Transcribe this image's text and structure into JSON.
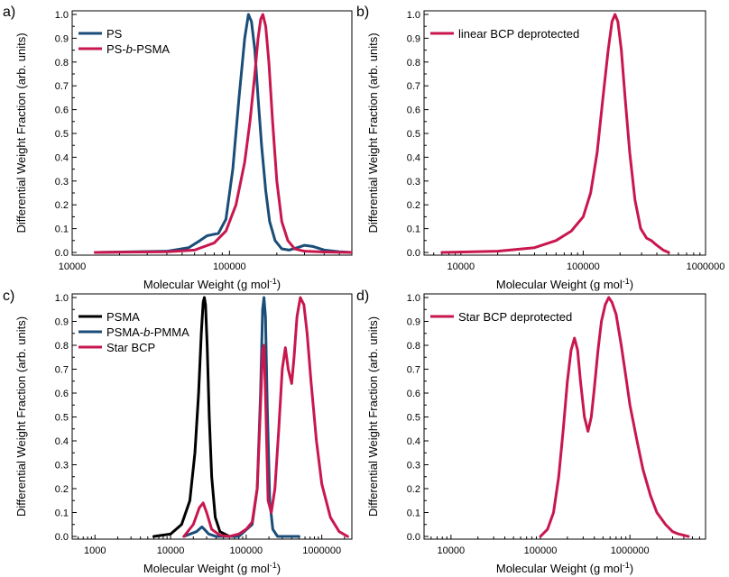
{
  "colors": {
    "navy": "#1a4d78",
    "crimson": "#c8174e",
    "black": "#000000"
  },
  "chart_data": [
    {
      "panel": "a)",
      "type": "line",
      "xscale": "log",
      "xlim": [
        10000,
        600000
      ],
      "ylim": [
        0,
        1.0
      ],
      "xticks": [
        10000,
        100000
      ],
      "xtick_labels": [
        "10000",
        "100000"
      ],
      "yticks": [
        0,
        0.1,
        0.2,
        0.3,
        0.4,
        0.5,
        0.6,
        0.7,
        0.8,
        0.9,
        1.0
      ],
      "ytick_labels": [
        "0.0",
        "0.1",
        "0.2",
        "0.3",
        "0.4",
        "0.5",
        "0.6",
        "0.7",
        "0.8",
        "0.9",
        "1.0"
      ],
      "xlabel": "Molecular Weight (g mol",
      "xlabel_sup": "-1",
      "xlabel_end": ")",
      "ylabel": "Differential Weight Fraction (arb. units)",
      "legend_position": "top-left",
      "series": [
        {
          "name": "PS",
          "name_parts": [
            "PS"
          ],
          "color": "#1a4d78",
          "x": [
            14000,
            40000,
            55000,
            65000,
            72000,
            78000,
            85000,
            95000,
            105000,
            115000,
            125000,
            132000,
            138000,
            145000,
            152000,
            160000,
            170000,
            180000,
            195000,
            215000,
            240000,
            270000,
            300000,
            340000,
            400000,
            500000,
            600000
          ],
          "y": [
            0.0,
            0.005,
            0.02,
            0.05,
            0.07,
            0.075,
            0.08,
            0.14,
            0.35,
            0.65,
            0.9,
            1.0,
            0.97,
            0.85,
            0.65,
            0.45,
            0.26,
            0.13,
            0.05,
            0.015,
            0.01,
            0.02,
            0.03,
            0.025,
            0.01,
            0.003,
            0.0
          ]
        },
        {
          "name": "PS-b-PSMA",
          "name_parts": [
            "PS-",
            "b",
            "-PSMA"
          ],
          "color": "#c8174e",
          "x": [
            14000,
            40000,
            60000,
            80000,
            95000,
            110000,
            125000,
            135000,
            145000,
            152000,
            158000,
            163000,
            170000,
            178000,
            188000,
            200000,
            215000,
            235000,
            260000,
            300000,
            400000,
            600000
          ],
          "y": [
            0.0,
            0.003,
            0.01,
            0.04,
            0.09,
            0.2,
            0.38,
            0.55,
            0.75,
            0.9,
            0.98,
            1.0,
            0.95,
            0.8,
            0.55,
            0.3,
            0.13,
            0.05,
            0.015,
            0.005,
            0.002,
            0.0
          ]
        }
      ]
    },
    {
      "panel": "b)",
      "type": "line",
      "xscale": "log",
      "xlim": [
        5000,
        1000000
      ],
      "ylim": [
        0,
        1.0
      ],
      "xticks": [
        10000,
        100000,
        1000000
      ],
      "xtick_labels": [
        "10000",
        "100000",
        "1000000"
      ],
      "yticks": [
        0,
        0.1,
        0.2,
        0.3,
        0.4,
        0.5,
        0.6,
        0.7,
        0.8,
        0.9,
        1.0
      ],
      "ytick_labels": [
        "0.0",
        "0.1",
        "0.2",
        "0.3",
        "0.4",
        "0.5",
        "0.6",
        "0.7",
        "0.8",
        "0.9",
        "1.0"
      ],
      "xlabel": "Molecular Weight (g mol",
      "xlabel_sup": "-1",
      "xlabel_end": ")",
      "ylabel": "Differential Weight Fraction (arb. units)",
      "legend_position": "top-left",
      "series": [
        {
          "name": "linear BCP deprotected",
          "name_parts": [
            "linear BCP deprotected"
          ],
          "color": "#c8174e",
          "x": [
            7000,
            20000,
            40000,
            60000,
            80000,
            100000,
            115000,
            130000,
            145000,
            160000,
            172000,
            182000,
            192000,
            205000,
            220000,
            240000,
            265000,
            295000,
            330000,
            360000,
            400000,
            450000,
            500000
          ],
          "y": [
            0.0,
            0.005,
            0.02,
            0.05,
            0.09,
            0.15,
            0.25,
            0.42,
            0.65,
            0.85,
            0.97,
            1.0,
            0.97,
            0.85,
            0.65,
            0.42,
            0.22,
            0.1,
            0.06,
            0.05,
            0.03,
            0.01,
            0.0
          ]
        }
      ]
    },
    {
      "panel": "c)",
      "type": "line",
      "xscale": "log",
      "xlim": [
        500,
        2500000
      ],
      "ylim": [
        0,
        1.0
      ],
      "xticks": [
        1000,
        10000,
        100000,
        1000000
      ],
      "xtick_labels": [
        "1000",
        "10000",
        "100000",
        "1000000"
      ],
      "yticks": [
        0,
        0.1,
        0.2,
        0.3,
        0.4,
        0.5,
        0.6,
        0.7,
        0.8,
        0.9,
        1.0
      ],
      "ytick_labels": [
        "0.0",
        "0.1",
        "0.2",
        "0.3",
        "0.4",
        "0.5",
        "0.6",
        "0.7",
        "0.8",
        "0.9",
        "1.0"
      ],
      "xlabel": "Molecular Weight (g mol",
      "xlabel_sup": "-1",
      "xlabel_end": ")",
      "ylabel": "Differential Weight Fraction (arb. units)",
      "legend_position": "top-left",
      "series": [
        {
          "name": "PSMA",
          "name_parts": [
            "PSMA"
          ],
          "color": "#000000",
          "x": [
            6000,
            10000,
            14000,
            18000,
            21000,
            23500,
            25500,
            27000,
            28000,
            29000,
            30500,
            32500,
            35000,
            39000,
            45000,
            60000
          ],
          "y": [
            0.0,
            0.01,
            0.05,
            0.15,
            0.35,
            0.6,
            0.85,
            0.98,
            1.0,
            0.97,
            0.8,
            0.5,
            0.25,
            0.08,
            0.02,
            0.0
          ]
        },
        {
          "name": "PSMA-b-PMMA",
          "name_parts": [
            "PSMA-",
            "b",
            "-PMMA"
          ],
          "color": "#1a4d78",
          "x": [
            15000,
            22000,
            26000,
            28000,
            32000,
            40000,
            80000,
            120000,
            140000,
            155000,
            165000,
            172000,
            180000,
            190000,
            205000,
            225000,
            260000,
            350000,
            500000
          ],
          "y": [
            0.0,
            0.02,
            0.04,
            0.03,
            0.01,
            0.0,
            0.0,
            0.05,
            0.2,
            0.6,
            0.95,
            1.0,
            0.92,
            0.55,
            0.15,
            0.03,
            0.0,
            0.0,
            0.0
          ]
        },
        {
          "name": "Star BCP",
          "name_parts": [
            "Star BCP"
          ],
          "color": "#c8174e",
          "x": [
            15000,
            20000,
            24000,
            27000,
            30000,
            35000,
            45000,
            60000,
            80000,
            100000,
            120000,
            140000,
            155000,
            165000,
            172000,
            180000,
            195000,
            215000,
            240000,
            270000,
            300000,
            330000,
            360000,
            400000,
            430000,
            470000,
            520000,
            580000,
            640000,
            720000,
            850000,
            1000000,
            1300000,
            1700000,
            2200000
          ],
          "y": [
            0.0,
            0.05,
            0.12,
            0.14,
            0.1,
            0.03,
            0.005,
            0.0,
            0.01,
            0.03,
            0.06,
            0.2,
            0.55,
            0.78,
            0.8,
            0.6,
            0.15,
            0.1,
            0.2,
            0.45,
            0.7,
            0.79,
            0.7,
            0.64,
            0.75,
            0.92,
            1.0,
            0.97,
            0.85,
            0.65,
            0.4,
            0.22,
            0.08,
            0.02,
            0.0
          ]
        }
      ]
    },
    {
      "panel": "d)",
      "type": "line",
      "xscale": "log",
      "xlim": [
        5000,
        7000000
      ],
      "ylim": [
        0,
        1.0
      ],
      "xticks": [
        10000,
        100000,
        1000000
      ],
      "xtick_labels": [
        "10000",
        "100000",
        "1000000"
      ],
      "yticks": [
        0,
        0.1,
        0.2,
        0.3,
        0.4,
        0.5,
        0.6,
        0.7,
        0.8,
        0.9,
        1.0
      ],
      "ytick_labels": [
        "0.0",
        "0.1",
        "0.2",
        "0.3",
        "0.4",
        "0.5",
        "0.6",
        "0.7",
        "0.8",
        "0.9",
        "1.0"
      ],
      "xlabel": "Molecular Weight (g mol",
      "xlabel_sup": "-1",
      "xlabel_end": ")",
      "ylabel": "Differential Weight Fraction (arb. units)",
      "legend_position": "top-left",
      "series": [
        {
          "name": "Star BCP deprotected",
          "name_parts": [
            "Star BCP deprotected"
          ],
          "color": "#c8174e",
          "x": [
            100000,
            120000,
            140000,
            160000,
            180000,
            200000,
            220000,
            240000,
            260000,
            280000,
            310000,
            340000,
            370000,
            400000,
            440000,
            480000,
            530000,
            580000,
            630000,
            700000,
            800000,
            900000,
            1000000,
            1200000,
            1400000,
            1700000,
            2000000,
            2500000,
            3000000,
            3500000,
            4000000,
            4500000
          ],
          "y": [
            0.0,
            0.03,
            0.1,
            0.25,
            0.45,
            0.65,
            0.78,
            0.83,
            0.78,
            0.65,
            0.5,
            0.44,
            0.5,
            0.62,
            0.78,
            0.9,
            0.97,
            1.0,
            0.98,
            0.93,
            0.8,
            0.67,
            0.55,
            0.4,
            0.28,
            0.17,
            0.1,
            0.05,
            0.02,
            0.01,
            0.005,
            0.0
          ]
        }
      ]
    }
  ]
}
